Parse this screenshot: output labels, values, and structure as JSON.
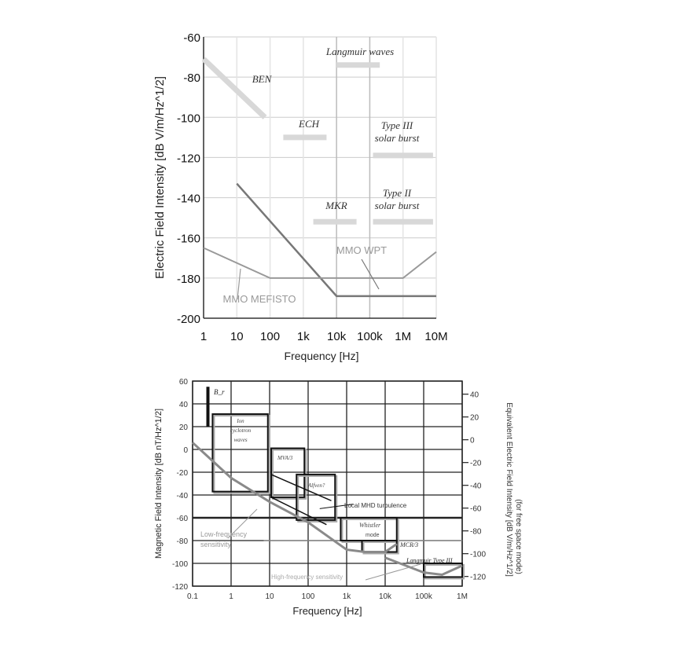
{
  "chart_data": [
    {
      "type": "line",
      "xlabel": "Frequency [Hz]",
      "ylabel": "Electric Field Intensity  [dB V/m/Hz^1/2]",
      "xscale": "log",
      "xlim": [
        1,
        10000000
      ],
      "ylim": [
        -200,
        -60
      ],
      "xticks": [
        "1",
        "10",
        "100",
        "1k",
        "10k",
        "100k",
        "1M",
        "10M"
      ],
      "yticks": [
        "-60",
        "-80",
        "-100",
        "-120",
        "-140",
        "-160",
        "-180",
        "-200"
      ],
      "grid": true,
      "series": [
        {
          "name": "MMO WPT",
          "color": "#777777",
          "points": [
            [
              10,
              -133
            ],
            [
              10000,
              -189
            ],
            [
              10000000,
              -189
            ]
          ]
        },
        {
          "name": "MMO MEFISTO",
          "color": "#999999",
          "points": [
            [
              1,
              -165
            ],
            [
              100,
              -180
            ],
            [
              1000000,
              -180
            ],
            [
              10000000,
              -167
            ]
          ]
        }
      ],
      "regions": [
        {
          "name": "BEN",
          "shape": "band",
          "points": [
            [
              1,
              -71
            ],
            [
              70,
              -100
            ]
          ]
        },
        {
          "name": "ECH",
          "shape": "bar",
          "x": [
            250,
            5000
          ],
          "y": -110
        },
        {
          "name": "Langmuir waves",
          "shape": "bar",
          "x": [
            10000,
            200000
          ],
          "y": -74
        },
        {
          "name": "Type III solar burst",
          "shape": "bar",
          "x": [
            125000,
            8000000
          ],
          "y": -119
        },
        {
          "name": "MKR",
          "shape": "bar",
          "x": [
            2000,
            40000
          ],
          "y": -152
        },
        {
          "name": "Type II solar burst",
          "shape": "bar",
          "x": [
            125000,
            8000000
          ],
          "y": -152
        }
      ]
    },
    {
      "type": "line",
      "xlabel": "Frequency [Hz]",
      "ylabel": "Magnetic Field Intensity  [dB nT/Hz^1/2]",
      "y2label": "Equivalent Electric Field Intensity  [dB V/m/Hz^1/2]",
      "y2note": "(for free space mode)",
      "xscale": "log",
      "xlim": [
        0.1,
        1000000
      ],
      "ylim": [
        -120,
        60
      ],
      "xticks": [
        "0.1",
        "1",
        "10",
        "100",
        "1k",
        "10k",
        "100k",
        "1M"
      ],
      "yticks": [
        "60",
        "40",
        "20",
        "0",
        "-20",
        "-40",
        "-60",
        "-80",
        "-100",
        "-120"
      ],
      "y2ticks": [
        "40",
        "20",
        "0",
        "-20",
        "-40",
        "-60",
        "-80",
        "-100",
        "-120"
      ],
      "grid": true,
      "series": [
        {
          "name": "Low-frequency sensitivity",
          "color": "#8a8a8a",
          "points": [
            [
              0.1,
              6
            ],
            [
              1,
              -25
            ],
            [
              10,
              -46
            ],
            [
              100,
              -64
            ],
            [
              1000,
              -88
            ],
            [
              3000,
              -90
            ],
            [
              10000,
              -90
            ],
            [
              20000,
              -83
            ]
          ]
        },
        {
          "name": "High-frequency sensitivity",
          "color": "#8a8a8a",
          "points": [
            [
              10000,
              -95
            ],
            [
              100000,
              -108
            ],
            [
              300000,
              -110
            ],
            [
              1000000,
              -102
            ]
          ]
        }
      ],
      "regions": [
        {
          "name": "B_r",
          "shape": "vbar",
          "x": 0.25,
          "y": [
            20,
            55
          ]
        },
        {
          "name": "Ion cyclotron waves",
          "shape": "box",
          "x": [
            0.33,
            9
          ],
          "y": [
            -37,
            31
          ]
        },
        {
          "name": "MVA/3",
          "shape": "box",
          "x": [
            11,
            80
          ],
          "y": [
            -42,
            1
          ]
        },
        {
          "name": "Alfven?",
          "shape": "box",
          "x": [
            50,
            500
          ],
          "y": [
            -62,
            -22
          ]
        },
        {
          "name": "Local MHD turbulence",
          "shape": "annotation"
        },
        {
          "name": "Whistler mode",
          "shape": "box",
          "x": [
            700,
            20000
          ],
          "y": [
            -80,
            -60
          ]
        },
        {
          "name": "MCR/3",
          "shape": "box",
          "x": [
            2500,
            20000
          ],
          "y": [
            -90,
            -80
          ]
        },
        {
          "name": "Langmuir Type III",
          "shape": "box",
          "x": [
            100000,
            1000000
          ],
          "y": [
            -112,
            -100
          ]
        }
      ]
    }
  ],
  "labels": {
    "top": {
      "ben": "BEN",
      "ech": "ECH",
      "lw": "Langmuir waves",
      "t3a": "Type III",
      "t3b": "solar burst",
      "mkr": "MKR",
      "t2a": "Type II",
      "t2b": "solar burst",
      "wpt": "MMO WPT",
      "mef": "MMO MEFISTO"
    },
    "bot": {
      "br": "B_r",
      "ic1": "Ion",
      "ic2": "cyclotron",
      "ic3": "waves",
      "mva": "MVA/3",
      "alf": "Alfven?",
      "mhd": "Local MHD turbulence",
      "wh1": "Whistler",
      "wh2": "mode",
      "mcr": "MCR/3",
      "lt3": "Langmuir Type III",
      "lf1": "Low-frequency",
      "lf2": "sensitivity",
      "hf": "High-frequency sensitivity"
    }
  }
}
